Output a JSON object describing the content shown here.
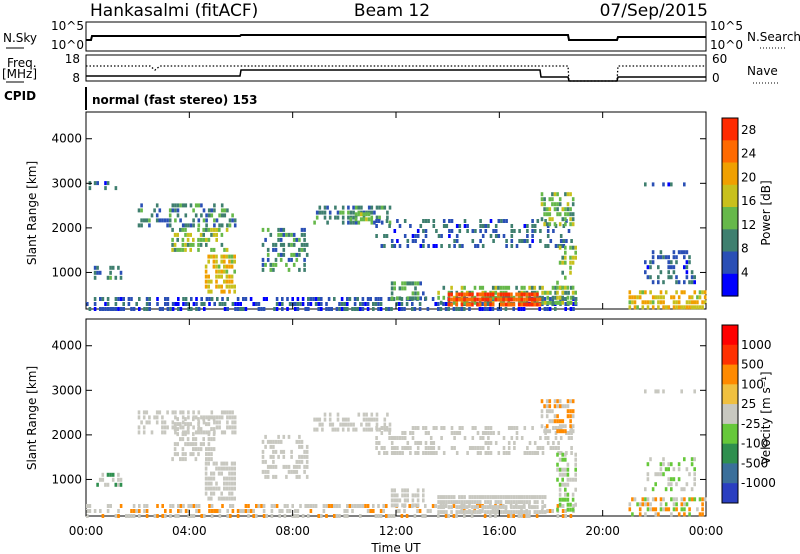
{
  "header": {
    "station": "Hankasalmi (fitACF)",
    "beam": "Beam 12",
    "date": "07/Sep/2015"
  },
  "status_panels": {
    "sky_label": "N.Sky",
    "sky_ticks": [
      "10^5",
      "10^0"
    ],
    "search_label": "N.Search",
    "search_ticks": [
      "10^5",
      "10^0"
    ],
    "freq_label_1": "Freq.",
    "freq_label_2": "[MHz]",
    "freq_ticks": [
      "18",
      "8"
    ],
    "nave_label": "Nave",
    "nave_ticks": [
      "60",
      "0"
    ],
    "cpid_label": "CPID",
    "cpid_text": "normal (fast stereo) 153"
  },
  "chart_data": [
    {
      "type": "heatmap",
      "title": "",
      "xlabel": "Time UT",
      "ylabel": "Slant Range [km]",
      "xlim": [
        0,
        24
      ],
      "ylim": [
        180,
        4600
      ],
      "x_ticks": [
        "00:00",
        "04:00",
        "08:00",
        "12:00",
        "16:00",
        "20:00",
        "00:00"
      ],
      "y_ticks": [
        1000,
        2000,
        3000,
        4000
      ],
      "colorbar": {
        "label": "Power [dB]",
        "ticks": [
          "4",
          "8",
          "12",
          "16",
          "20",
          "24",
          "28"
        ],
        "range": [
          0,
          30
        ],
        "colors": [
          "#0000ff",
          "#2a4fb5",
          "#3f7f6f",
          "#66b84a",
          "#c8c01c",
          "#f0a000",
          "#ff6a00",
          "#ff2a00"
        ]
      },
      "features": [
        {
          "t0": 0.0,
          "t1": 19.0,
          "r0": 180,
          "r1": 450,
          "val": 6,
          "den": 0.55
        },
        {
          "t0": 0.3,
          "t1": 1.4,
          "r0": 900,
          "r1": 1150,
          "val": 8,
          "den": 0.5
        },
        {
          "t0": 0.1,
          "t1": 1.2,
          "r0": 2900,
          "r1": 3050,
          "val": 7,
          "den": 0.3
        },
        {
          "t0": 2.0,
          "t1": 5.8,
          "r0": 2050,
          "r1": 2550,
          "val": 9,
          "den": 0.45
        },
        {
          "t0": 3.3,
          "t1": 5.5,
          "r0": 1500,
          "r1": 2000,
          "val": 14,
          "den": 0.55
        },
        {
          "t0": 4.6,
          "t1": 5.8,
          "r0": 600,
          "r1": 1400,
          "val": 18,
          "den": 0.65
        },
        {
          "t0": 6.8,
          "t1": 8.6,
          "r0": 1100,
          "r1": 2000,
          "val": 10,
          "den": 0.45
        },
        {
          "t0": 8.8,
          "t1": 11.8,
          "r0": 2100,
          "r1": 2500,
          "val": 9,
          "den": 0.55
        },
        {
          "t0": 10.2,
          "t1": 11.2,
          "r0": 2150,
          "r1": 2350,
          "val": 14,
          "den": 0.5
        },
        {
          "t0": 11.2,
          "t1": 18.8,
          "r0": 1600,
          "r1": 2200,
          "val": 7,
          "den": 0.35
        },
        {
          "t0": 11.8,
          "t1": 13.2,
          "r0": 400,
          "r1": 800,
          "val": 10,
          "den": 0.5
        },
        {
          "t0": 13.6,
          "t1": 18.8,
          "r0": 350,
          "r1": 700,
          "val": 12,
          "den": 0.6
        },
        {
          "t0": 14.0,
          "t1": 17.6,
          "r0": 250,
          "r1": 550,
          "val": 27,
          "den": 0.85
        },
        {
          "t0": 17.6,
          "t1": 18.9,
          "r0": 2100,
          "r1": 2800,
          "val": 13,
          "den": 0.6
        },
        {
          "t0": 18.2,
          "t1": 19.0,
          "r0": 300,
          "r1": 1600,
          "val": 14,
          "den": 0.5
        },
        {
          "t0": 21.0,
          "t1": 24.0,
          "r0": 180,
          "r1": 600,
          "val": 18,
          "den": 0.55
        },
        {
          "t0": 21.6,
          "t1": 23.6,
          "r0": 800,
          "r1": 1500,
          "val": 7,
          "den": 0.35
        },
        {
          "t0": 21.5,
          "t1": 23.8,
          "r0": 2920,
          "r1": 3020,
          "val": 6,
          "den": 0.25
        }
      ]
    },
    {
      "type": "heatmap",
      "title": "",
      "xlabel": "Time UT",
      "ylabel": "Slant Range [km]",
      "xlim": [
        0,
        24
      ],
      "ylim": [
        180,
        4600
      ],
      "x_ticks": [
        "00:00",
        "04:00",
        "08:00",
        "12:00",
        "16:00",
        "20:00",
        "00:00"
      ],
      "y_ticks": [
        1000,
        2000,
        3000,
        4000
      ],
      "colorbar": {
        "label": "Velocity [m s⁻¹]",
        "ticks": [
          "1000",
          "500",
          "100",
          "25",
          "-25",
          "-100",
          "-500",
          "-1000"
        ],
        "colors": [
          "#2a3fc0",
          "#3a6f9a",
          "#2f8f4f",
          "#66c83a",
          "#c8c8c0",
          "#f0c040",
          "#ff8a00",
          "#ff3000",
          "#ff0000"
        ]
      },
      "features": [
        {
          "t0": 0.0,
          "t1": 19.0,
          "r0": 180,
          "r1": 450,
          "cls": [
            0,
            5,
            2
          ],
          "den": 0.45
        },
        {
          "t0": 0.3,
          "t1": 1.4,
          "r0": 900,
          "r1": 1150,
          "cls": [
            0,
            4
          ],
          "den": 0.4
        },
        {
          "t0": 2.0,
          "t1": 5.8,
          "r0": 2050,
          "r1": 2550,
          "cls": [
            0
          ],
          "den": 0.5
        },
        {
          "t0": 3.3,
          "t1": 5.0,
          "r0": 1500,
          "r1": 2400,
          "cls": [
            5,
            6
          ],
          "den": 0.55
        },
        {
          "t0": 4.6,
          "t1": 5.8,
          "r0": 600,
          "r1": 1400,
          "cls": [
            5,
            6
          ],
          "den": 0.65
        },
        {
          "t0": 6.8,
          "t1": 8.6,
          "r0": 1100,
          "r1": 2000,
          "cls": [
            5,
            6,
            0
          ],
          "den": 0.45
        },
        {
          "t0": 8.8,
          "t1": 11.8,
          "r0": 2100,
          "r1": 2500,
          "cls": [
            0
          ],
          "den": 0.55
        },
        {
          "t0": 11.2,
          "t1": 18.8,
          "r0": 1600,
          "r1": 2200,
          "cls": [
            0
          ],
          "den": 0.35
        },
        {
          "t0": 11.8,
          "t1": 13.2,
          "r0": 400,
          "r1": 800,
          "cls": [
            0,
            5
          ],
          "den": 0.5
        },
        {
          "t0": 13.6,
          "t1": 17.8,
          "r0": 250,
          "r1": 650,
          "cls": [
            6,
            5
          ],
          "den": 0.85
        },
        {
          "t0": 17.6,
          "t1": 18.9,
          "r0": 2100,
          "r1": 2800,
          "cls": [
            0,
            2
          ],
          "den": 0.6
        },
        {
          "t0": 18.2,
          "t1": 19.0,
          "r0": 300,
          "r1": 1600,
          "cls": [
            3,
            0
          ],
          "den": 0.5
        },
        {
          "t0": 21.0,
          "t1": 24.0,
          "r0": 180,
          "r1": 600,
          "cls": [
            3,
            2,
            6
          ],
          "den": 0.55
        },
        {
          "t0": 21.6,
          "t1": 23.6,
          "r0": 800,
          "r1": 1500,
          "cls": [
            3,
            0
          ],
          "den": 0.35
        },
        {
          "t0": 21.5,
          "t1": 23.8,
          "r0": 2920,
          "r1": 3020,
          "cls": [
            0
          ],
          "den": 0.25
        }
      ]
    }
  ]
}
